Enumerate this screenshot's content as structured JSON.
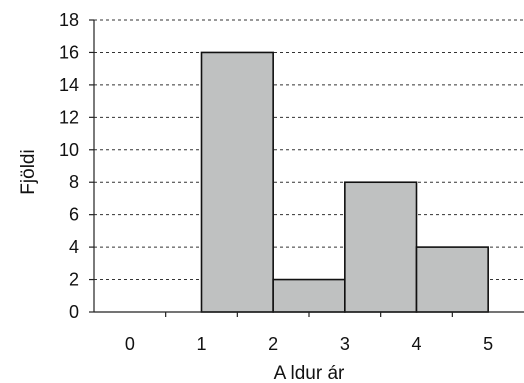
{
  "chart_data": {
    "type": "bar",
    "title": "",
    "xlabel": "A ldur ár",
    "ylabel": "Fjöldi",
    "ylim": [
      0,
      18
    ],
    "yticks": [
      0,
      2,
      4,
      6,
      8,
      10,
      12,
      14,
      16,
      18
    ],
    "categories": [
      "0",
      "1",
      "2",
      "3",
      "4",
      "5"
    ],
    "bins": [
      {
        "from": 1,
        "to": 2,
        "value": 16
      },
      {
        "from": 2,
        "to": 3,
        "value": 2
      },
      {
        "from": 3,
        "to": 4,
        "value": 8
      },
      {
        "from": 4,
        "to": 5,
        "value": 4
      }
    ],
    "grid": true,
    "colors": {
      "bar": "#bfc1c1",
      "outline": "#111111"
    }
  }
}
